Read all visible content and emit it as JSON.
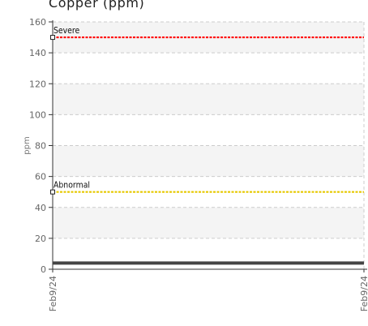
{
  "chart_data": {
    "type": "line",
    "title": "Copper (ppm)",
    "xlabel": "",
    "ylabel": "ppm",
    "ylim": [
      0,
      160
    ],
    "yticks": [
      0,
      20,
      40,
      60,
      80,
      100,
      120,
      140,
      160
    ],
    "x": [
      "Feb9/24",
      "Feb9/24"
    ],
    "grid": true,
    "series": [
      {
        "values": [
          4,
          4
        ],
        "color": "#444444"
      }
    ],
    "thresholds": [
      {
        "name": "Severe",
        "value": 150,
        "color": "#ff0000"
      },
      {
        "name": "Abnormal",
        "value": 50,
        "color": "#e6c800"
      }
    ]
  }
}
